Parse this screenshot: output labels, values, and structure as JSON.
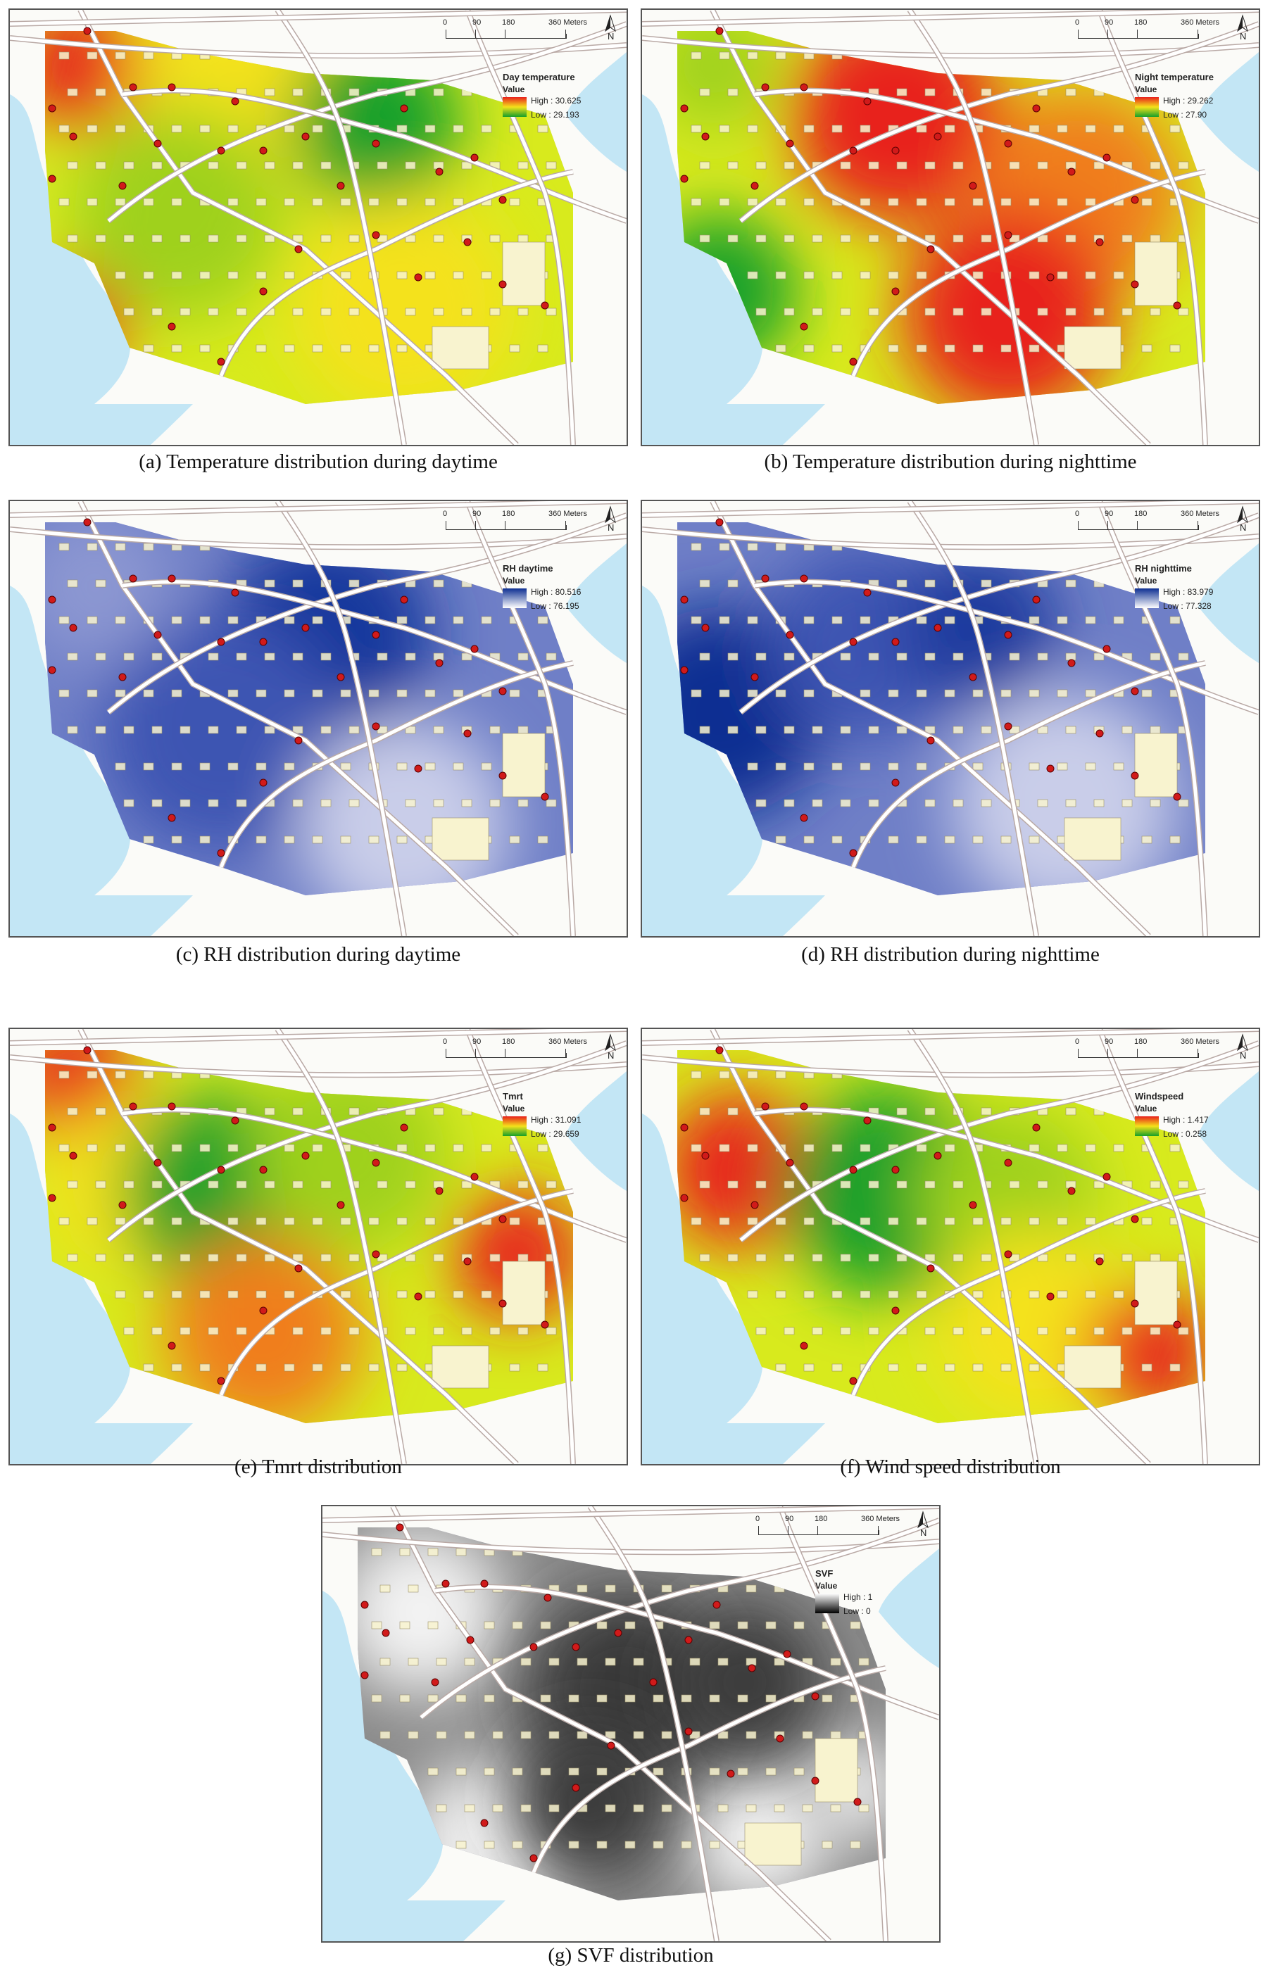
{
  "common": {
    "scale_labels": [
      "0",
      "90",
      "180",
      "360 Meters"
    ],
    "north_label": "N",
    "value_label": "Value"
  },
  "panels": [
    {
      "caption": "(a) Temperature distribution during daytime",
      "legend_title": "Day temperature",
      "high": "High : 30.625",
      "low": "Low : 29.193",
      "palette": "heat",
      "ramp": [
        "#e8201c",
        "#f4e21a",
        "#17a02a"
      ],
      "pattern": "a"
    },
    {
      "caption": "(b) Temperature distribution during nighttime",
      "legend_title": "Night temperature",
      "high": "High : 29.262",
      "low": "Low : 27.90",
      "palette": "heat",
      "ramp": [
        "#e8201c",
        "#f4e21a",
        "#17a02a"
      ],
      "pattern": "b"
    },
    {
      "caption": "(c) RH distribution during daytime",
      "legend_title": "RH daytime",
      "high": "High : 80.516",
      "low": "Low : 76.195",
      "palette": "blue",
      "ramp": [
        "#0d2f92",
        "#ffffff"
      ],
      "pattern": "c"
    },
    {
      "caption": "(d) RH distribution during nighttime",
      "legend_title": "RH nighttime",
      "high": "High : 83.979",
      "low": "Low : 77.328",
      "palette": "blue",
      "ramp": [
        "#0d2f92",
        "#ffffff"
      ],
      "pattern": "d"
    },
    {
      "caption": "(e) Tmrt distribution",
      "legend_title": "Tmrt",
      "high": "High : 31.091",
      "low": "Low : 29.659",
      "palette": "heat",
      "ramp": [
        "#e8201c",
        "#f4e21a",
        "#17a02a"
      ],
      "pattern": "e"
    },
    {
      "caption": "(f) Wind speed distribution",
      "legend_title": "Windspeed",
      "high": "High : 1.417",
      "low": "Low : 0.258",
      "palette": "heat",
      "ramp": [
        "#e8201c",
        "#f4e21a",
        "#17a02a"
      ],
      "pattern": "f"
    },
    {
      "caption": "(g) SVF distribution",
      "legend_title": "SVF",
      "high": "High : 1",
      "low": "Low : 0",
      "palette": "gray",
      "ramp": [
        "#ffffff",
        "#000000"
      ],
      "pattern": "g"
    }
  ],
  "colors": {
    "water": "#c3e6f5",
    "green_space": "#cbc3e0",
    "road": "#ffffff",
    "road_edge": "#b9a9a5",
    "building": "#f8f3cf",
    "station": "#d11a1a"
  }
}
